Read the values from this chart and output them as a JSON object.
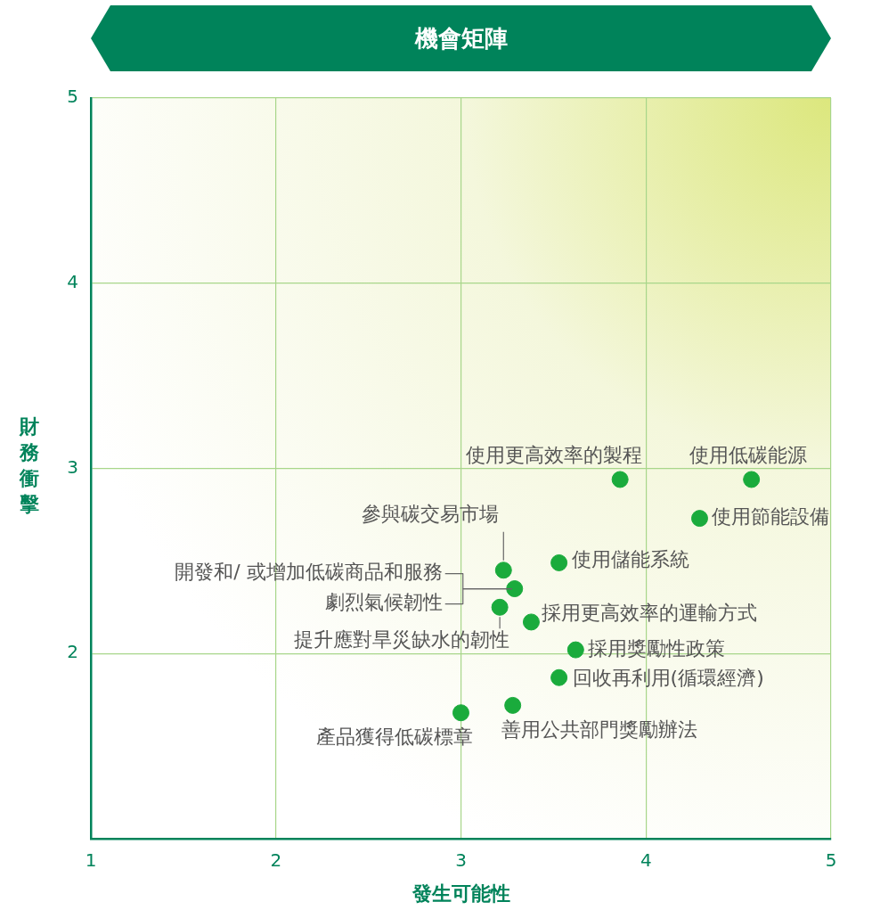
{
  "chart_data": {
    "type": "scatter",
    "title": "機會矩陣",
    "xlabel": "發生可能性",
    "ylabel": "財務衝擊",
    "x": [
      3.86,
      4.57,
      4.29,
      3.53,
      3.23,
      3.29,
      3.21,
      3.38,
      3.62,
      3.53,
      3.28,
      3.0
    ],
    "values": [
      2.94,
      2.94,
      2.73,
      2.49,
      2.45,
      2.35,
      2.25,
      2.17,
      2.02,
      1.87,
      1.72,
      1.68
    ],
    "color": "#1aab3c",
    "marker": "circle",
    "xlim": [
      1,
      5
    ],
    "ylim": [
      1,
      5
    ],
    "xticks": [
      1,
      2,
      3,
      4,
      5
    ],
    "yticks": [
      {
        "value": 1,
        "label": null
      },
      2,
      3,
      4,
      5
    ],
    "grid": true,
    "annotations": [
      {
        "text": "使用更高效率的製程",
        "x": 3.86,
        "y": 2.94
      },
      {
        "text": "使用低碳能源",
        "x": 4.57,
        "y": 2.94
      },
      {
        "text": "使用節能設備",
        "x": 4.29,
        "y": 2.73
      },
      {
        "text": "使用儲能系統",
        "x": 3.53,
        "y": 2.49
      },
      {
        "text": "參與碳交易市場",
        "x": 3.23,
        "y": 2.45
      },
      {
        "text": "開發和/ 或增加低碳商品和服務",
        "x": 3.29,
        "y": 2.35
      },
      {
        "text": "劇烈氣候韌性",
        "x": 3.29,
        "y": 2.35
      },
      {
        "text": "提升應對旱災缺水的韌性",
        "x": 3.21,
        "y": 2.25
      },
      {
        "text": "採用更高效率的運輸方式",
        "x": 3.38,
        "y": 2.17
      },
      {
        "text": "採用獎勵性政策",
        "x": 3.62,
        "y": 2.02
      },
      {
        "text": "回收再利用(循環經濟)",
        "x": 3.53,
        "y": 1.87
      },
      {
        "text": "善用公共部門獎勵辦法",
        "x": 3.28,
        "y": 1.72
      },
      {
        "text": "產品獲得低碳標章",
        "x": 3.0,
        "y": 1.68
      }
    ]
  }
}
